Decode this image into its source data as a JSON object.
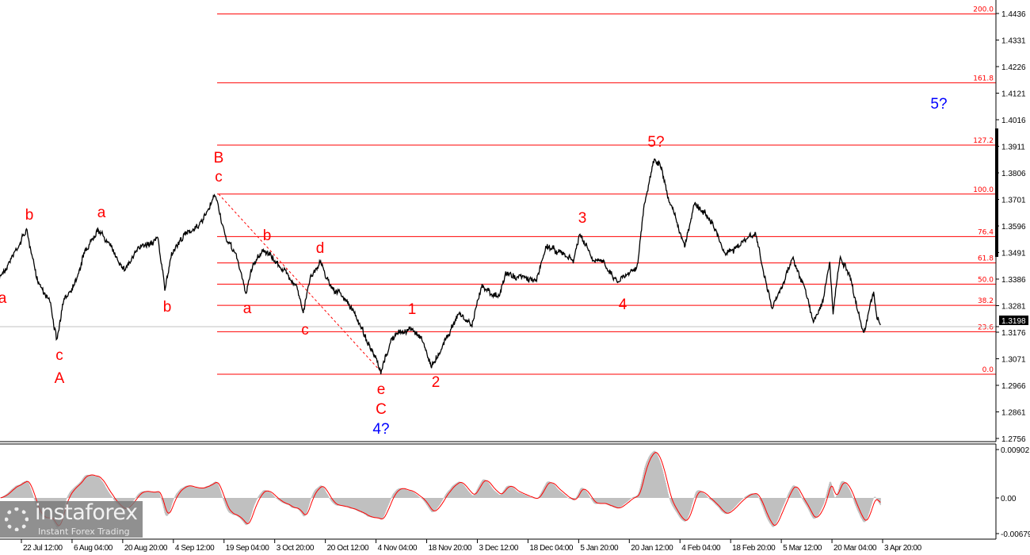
{
  "chart_data": {
    "type": "line",
    "price_axis": {
      "ylim": [
        1.2756,
        1.4436
      ],
      "tick_labels": [
        "1.4436",
        "1.4331",
        "1.4226",
        "1.4121",
        "1.4016",
        "1.3911",
        "1.3806",
        "1.3701",
        "1.3596",
        "1.3491",
        "1.3386",
        "1.3281",
        "1.3176",
        "1.3071",
        "1.2966",
        "1.2861",
        "1.2756"
      ],
      "current_price": "1.3198"
    },
    "oscillator_axis": {
      "tick_labels": [
        "0.00902",
        "0.00",
        "-0.00679"
      ],
      "ylim": [
        -0.00679,
        0.00902
      ]
    },
    "x_ticks": [
      "22 Jul 12:00",
      "6 Aug 04:00",
      "20 Aug 20:00",
      "4 Sep 12:00",
      "19 Sep 04:00",
      "3 Oct 20:00",
      "20 Oct 12:00",
      "4 Nov 04:00",
      "18 Nov 20:00",
      "3 Dec 12:00",
      "18 Dec 04:00",
      "5 Jan 20:00",
      "20 Jan 12:00",
      "4 Feb 04:00",
      "18 Feb 20:00",
      "5 Mar 12:00",
      "20 Mar 04:00",
      "3 Apr 20:00"
    ],
    "price_path": [
      [
        "07-16",
        1.3392
      ],
      [
        "07-19",
        1.3455
      ],
      [
        "07-24",
        1.358
      ],
      [
        "07-27",
        1.3392
      ],
      [
        "07-31",
        1.3298
      ],
      [
        "08-02",
        1.3142
      ],
      [
        "08-04",
        1.3298
      ],
      [
        "08-08",
        1.3392
      ],
      [
        "08-10",
        1.3486
      ],
      [
        "08-14",
        1.358
      ],
      [
        "08-17",
        1.3533
      ],
      [
        "08-22",
        1.3424
      ],
      [
        "08-27",
        1.3518
      ],
      [
        "09-01",
        1.3549
      ],
      [
        "09-03",
        1.3345
      ],
      [
        "09-05",
        1.3486
      ],
      [
        "09-09",
        1.3565
      ],
      [
        "09-14",
        1.3612
      ],
      [
        "09-16",
        1.3659
      ],
      [
        "09-18",
        1.3721
      ],
      [
        "09-21",
        1.3549
      ],
      [
        "09-24",
        1.3486
      ],
      [
        "09-27",
        1.333
      ],
      [
        "09-29",
        1.3439
      ],
      [
        "10-02",
        1.3502
      ],
      [
        "10-07",
        1.3439
      ],
      [
        "10-12",
        1.3361
      ],
      [
        "10-14",
        1.3251
      ],
      [
        "10-16",
        1.3392
      ],
      [
        "10-19",
        1.3455
      ],
      [
        "10-22",
        1.3361
      ],
      [
        "10-27",
        1.3298
      ],
      [
        "10-31",
        1.3204
      ],
      [
        "11-03",
        1.311
      ],
      [
        "11-06",
        1.3016
      ],
      [
        "11-09",
        1.3142
      ],
      [
        "11-11",
        1.3173
      ],
      [
        "11-15",
        1.3189
      ],
      [
        "11-18",
        1.3157
      ],
      [
        "11-21",
        1.3041
      ],
      [
        "11-25",
        1.3142
      ],
      [
        "11-29",
        1.3251
      ],
      [
        "12-03",
        1.3204
      ],
      [
        "12-06",
        1.3361
      ],
      [
        "12-11",
        1.3314
      ],
      [
        "12-13",
        1.3408
      ],
      [
        "12-18",
        1.3392
      ],
      [
        "12-22",
        1.3377
      ],
      [
        "12-25",
        1.3518
      ],
      [
        "12-30",
        1.3486
      ],
      [
        "01-02",
        1.3455
      ],
      [
        "01-04",
        1.3565
      ],
      [
        "01-08",
        1.3455
      ],
      [
        "01-11",
        1.3455
      ],
      [
        "01-15",
        1.3377
      ],
      [
        "01-18",
        1.3408
      ],
      [
        "01-21",
        1.3439
      ],
      [
        "01-23",
        1.3674
      ],
      [
        "01-26",
        1.3862
      ],
      [
        "01-28",
        1.3831
      ],
      [
        "01-30",
        1.3706
      ],
      [
        "02-01",
        1.3643
      ],
      [
        "02-04",
        1.3518
      ],
      [
        "02-07",
        1.369
      ],
      [
        "02-12",
        1.3612
      ],
      [
        "02-16",
        1.3486
      ],
      [
        "02-20",
        1.3518
      ],
      [
        "02-25",
        1.3565
      ],
      [
        "02-28",
        1.3377
      ],
      [
        "03-02",
        1.3267
      ],
      [
        "03-04",
        1.333
      ],
      [
        "03-08",
        1.3471
      ],
      [
        "03-12",
        1.333
      ],
      [
        "03-14",
        1.322
      ],
      [
        "03-17",
        1.3298
      ],
      [
        "03-19",
        1.3455
      ],
      [
        "03-20",
        1.3251
      ],
      [
        "03-22",
        1.3471
      ],
      [
        "03-25",
        1.3392
      ],
      [
        "03-27",
        1.3282
      ],
      [
        "03-29",
        1.3173
      ],
      [
        "04-01",
        1.333
      ],
      [
        "04-02",
        1.3236
      ],
      [
        "04-03",
        1.3204
      ]
    ],
    "fibonacci": {
      "low": 1.301,
      "high": 1.3722,
      "levels": [
        {
          "ratio": 0.0,
          "label": "0.0"
        },
        {
          "ratio": 0.236,
          "label": "23.6"
        },
        {
          "ratio": 0.382,
          "label": "38.2"
        },
        {
          "ratio": 0.5,
          "label": "50.0"
        },
        {
          "ratio": 0.618,
          "label": "61.8"
        },
        {
          "ratio": 0.764,
          "label": "76.4"
        },
        {
          "ratio": 1.0,
          "label": "100.0"
        },
        {
          "ratio": 1.272,
          "label": "127.2"
        },
        {
          "ratio": 1.618,
          "label": "161.8"
        },
        {
          "ratio": 2.0,
          "label": "200.0"
        }
      ],
      "color": "#ff0000"
    },
    "wave_labels": [
      {
        "text": "a",
        "color": "#ff0000"
      },
      {
        "text": "b",
        "color": "#ff0000"
      },
      {
        "text": "c",
        "color": "#ff0000"
      },
      {
        "text": "A",
        "color": "#ff0000"
      },
      {
        "text": "a",
        "color": "#ff0000"
      },
      {
        "text": "b",
        "color": "#ff0000"
      },
      {
        "text": "B",
        "color": "#ff0000"
      },
      {
        "text": "c",
        "color": "#ff0000"
      },
      {
        "text": "b",
        "color": "#ff0000"
      },
      {
        "text": "d",
        "color": "#ff0000"
      },
      {
        "text": "a",
        "color": "#ff0000"
      },
      {
        "text": "c",
        "color": "#ff0000"
      },
      {
        "text": "1",
        "color": "#ff0000"
      },
      {
        "text": "e",
        "color": "#ff0000"
      },
      {
        "text": "C",
        "color": "#ff0000"
      },
      {
        "text": "4?",
        "color": "#0000ff"
      },
      {
        "text": "2",
        "color": "#ff0000"
      },
      {
        "text": "3",
        "color": "#ff0000"
      },
      {
        "text": "4",
        "color": "#ff0000"
      },
      {
        "text": "5?",
        "color": "#ff0000"
      },
      {
        "text": "5?",
        "color": "#0000ff"
      }
    ],
    "colors": {
      "price": "#000000",
      "histogram": "#c0c0c0",
      "signal": "#ff0000",
      "current_price_line": "#c0c0c0"
    },
    "grid": false
  },
  "watermark": {
    "brand": "instaforex",
    "tagline": "Instant Forex Trading"
  }
}
